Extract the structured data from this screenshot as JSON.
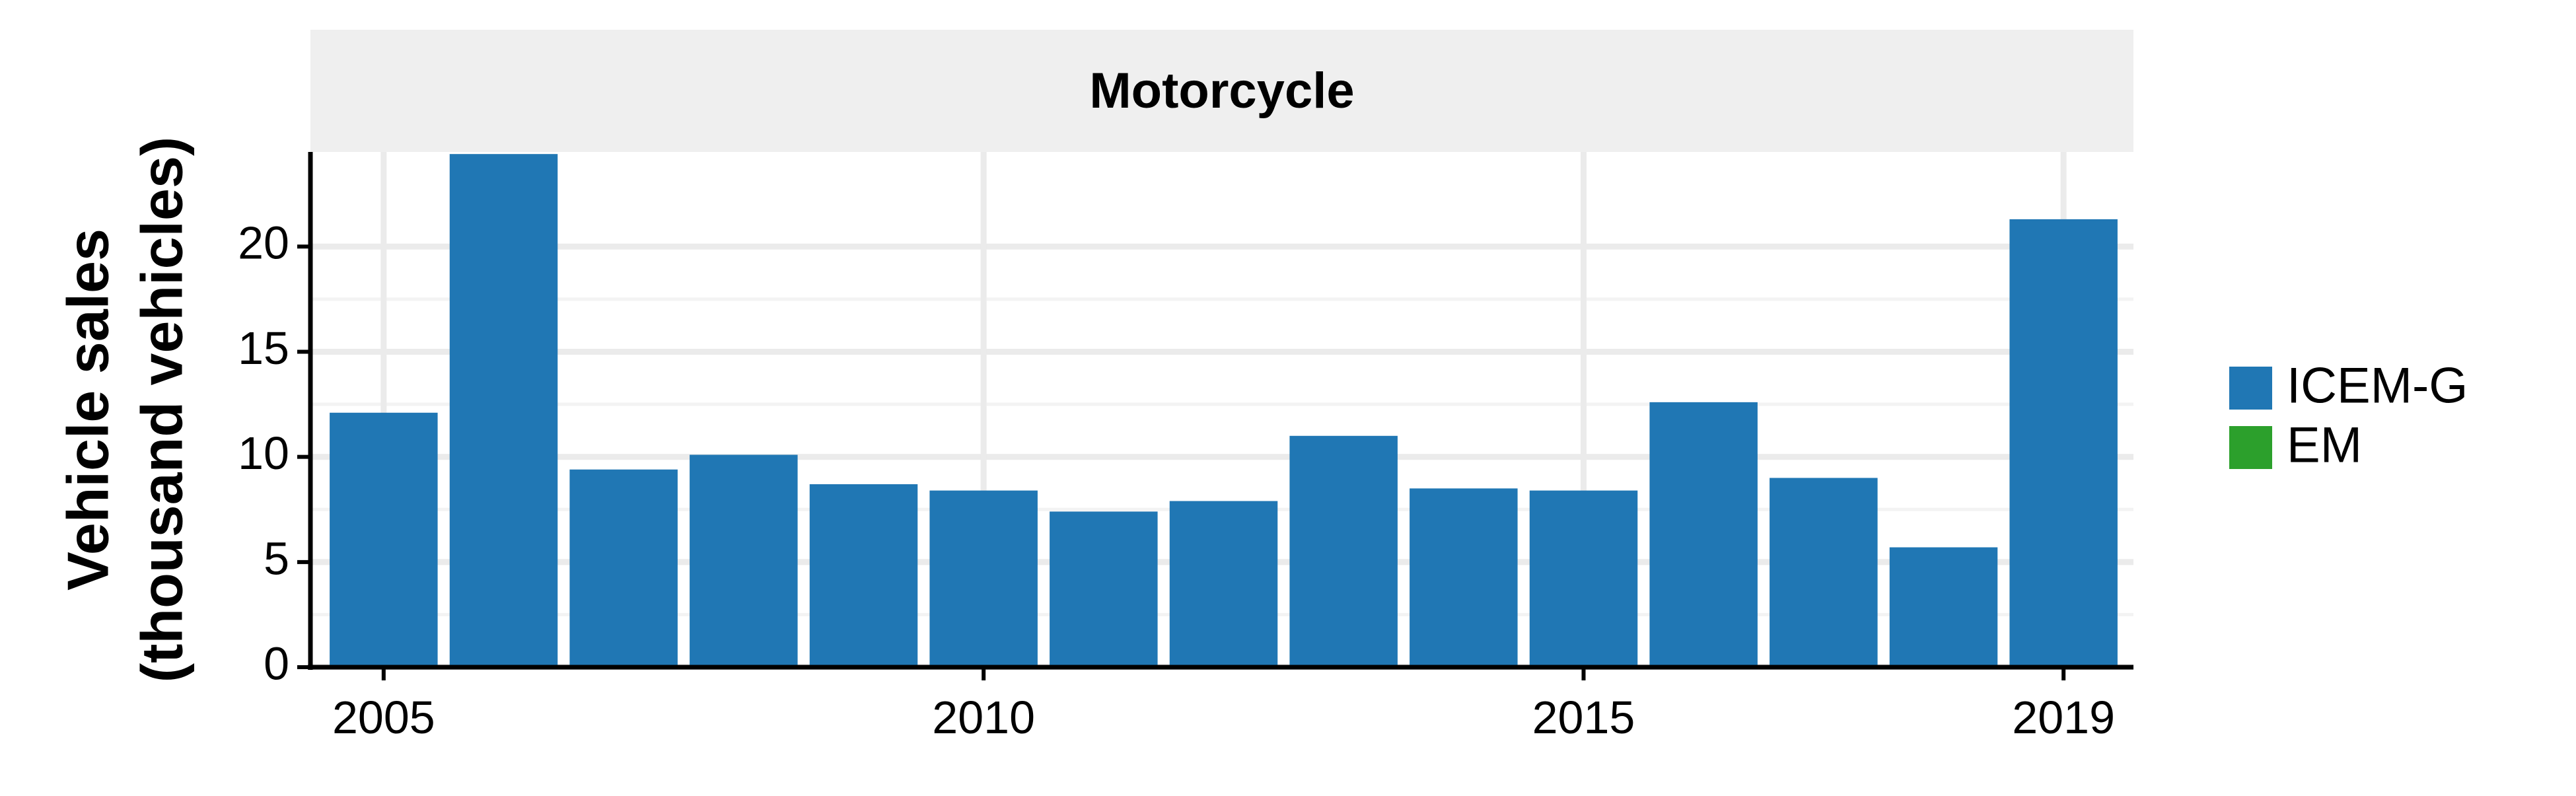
{
  "chart_data": {
    "type": "bar",
    "panel_title": "Motorcycle",
    "ylabel_lines": [
      "Vehicle sales",
      "(thousand vehicles)"
    ],
    "xlabel": "",
    "categories": [
      2005,
      2006,
      2007,
      2008,
      2009,
      2010,
      2011,
      2012,
      2013,
      2014,
      2015,
      2016,
      2017,
      2018,
      2019
    ],
    "x_ticks": [
      2005,
      2010,
      2015,
      2019
    ],
    "y_ticks": [
      0,
      5,
      10,
      15,
      20
    ],
    "ylim": [
      0,
      24.5
    ],
    "series": [
      {
        "name": "ICEM-G",
        "color": "#2077b4",
        "values": [
          12.1,
          24.4,
          9.4,
          10.1,
          8.7,
          8.4,
          7.4,
          7.9,
          11.0,
          8.5,
          8.4,
          12.6,
          9.0,
          5.7,
          21.3
        ]
      },
      {
        "name": "EM",
        "color": "#2ca02c",
        "values": [
          0,
          0,
          0,
          0,
          0,
          0,
          0,
          0,
          0,
          0,
          0,
          0,
          0,
          0,
          0
        ]
      }
    ],
    "grid": true,
    "legend_position": "right"
  }
}
